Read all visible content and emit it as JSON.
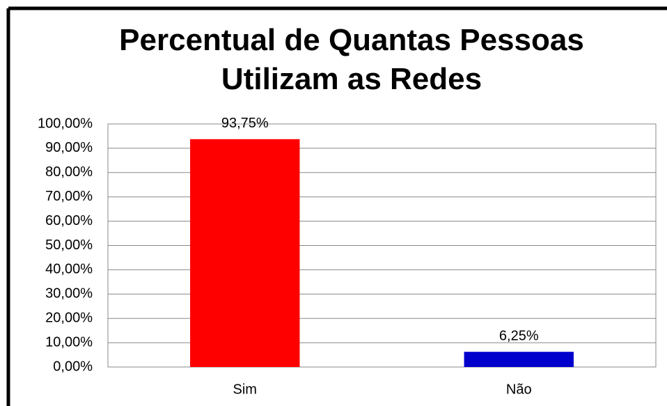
{
  "chart_data": {
    "type": "bar",
    "title": "Percentual de Quantas Pessoas Utilizam as Redes",
    "categories": [
      "Sim",
      "Não"
    ],
    "values": [
      93.75,
      6.25
    ],
    "value_labels": [
      "93,75%",
      "6,25%"
    ],
    "colors": [
      "#ff0000",
      "#0000cc"
    ],
    "ylim": [
      0,
      100
    ],
    "yticks": [
      {
        "value": 0,
        "label": "0,00%"
      },
      {
        "value": 10,
        "label": "10,00%"
      },
      {
        "value": 20,
        "label": "20,00%"
      },
      {
        "value": 30,
        "label": "30,00%"
      },
      {
        "value": 40,
        "label": "40,00%"
      },
      {
        "value": 50,
        "label": "50,00%"
      },
      {
        "value": 60,
        "label": "60,00%"
      },
      {
        "value": 70,
        "label": "70,00%"
      },
      {
        "value": 80,
        "label": "80,00%"
      },
      {
        "value": 90,
        "label": "90,00%"
      },
      {
        "value": 100,
        "label": "100,00%"
      }
    ],
    "grid": true
  }
}
